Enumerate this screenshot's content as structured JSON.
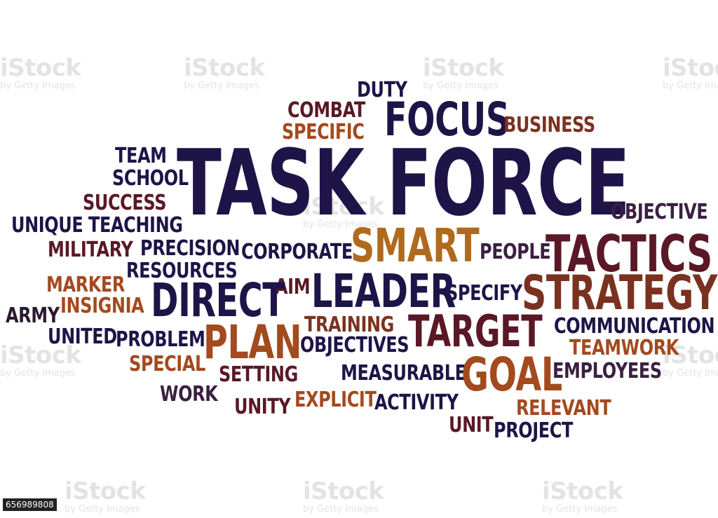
{
  "colors": {
    "navy": "#1e1448",
    "maroon": "#5a1826",
    "brown": "#7a3220",
    "rust": "#a34a1e",
    "amber": "#b06a1e",
    "plum": "#3a2040",
    "dark": "#2a1a2e"
  },
  "words": {
    "task_force": "TASK FORCE",
    "focus": "FOCUS",
    "duty": "DUTY",
    "combat": "COMBAT",
    "specific": "SPECIFIC",
    "business": "BUSINESS",
    "team": "TEAM",
    "school": "SCHOOL",
    "success": "SUCCESS",
    "unique": "UNIQUE",
    "teaching": "TEACHING",
    "objective": "OBJECTIVE",
    "smart": "SMART",
    "tactics": "TACTICS",
    "military": "MILITARY",
    "precision": "PRECISION",
    "corporate": "CORPORATE",
    "people": "PEOPLE",
    "resources": "RESOURCES",
    "marker": "MARKER",
    "aim": "AIM",
    "leader": "LEADER",
    "specify": "SPECIFY",
    "strategy": "STRATEGY",
    "direct": "DIRECT",
    "insignia": "INSIGNIA",
    "army": "ARMY",
    "training": "TRAINING",
    "target": "TARGET",
    "communication": "COMMUNICATION",
    "united": "UNITED",
    "problem": "PROBLEM",
    "plan": "PLAN",
    "objectives": "OBJECTIVES",
    "teamwork": "TEAMWORK",
    "special": "SPECIAL",
    "setting": "SETTING",
    "measurable": "MEASURABLE",
    "goal": "GOAL",
    "employees": "EMPLOYEES",
    "work": "WORK",
    "unity": "UNITY",
    "explicit": "EXPLICIT",
    "activity": "ACTIVITY",
    "relevant": "RELEVANT",
    "unit": "UNIT",
    "project": "PROJECT"
  },
  "watermark": {
    "brand": "iStock",
    "credit": "by Getty Images",
    "stock_id": "656989808"
  }
}
